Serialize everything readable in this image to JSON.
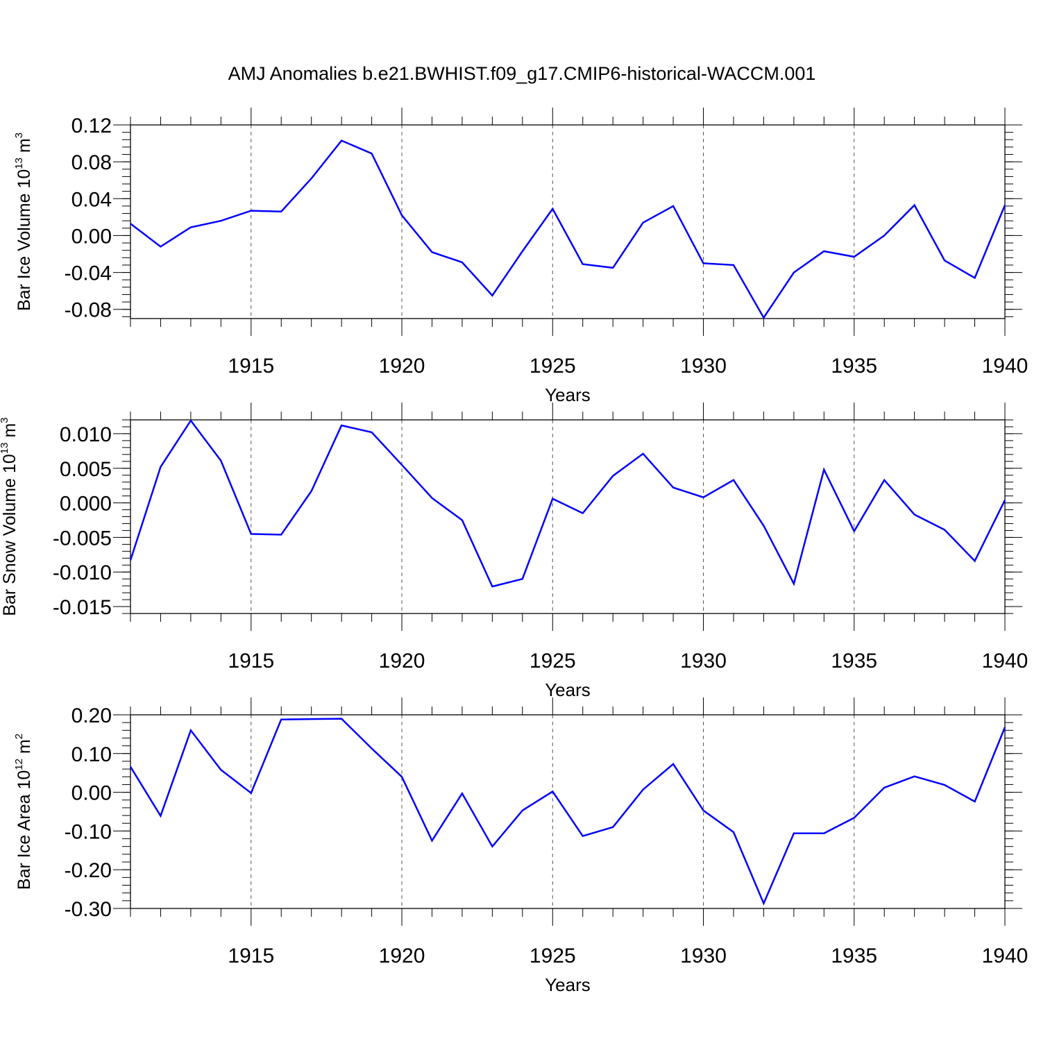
{
  "title": "AMJ Anomalies b.e21.BWHIST.f09_g17.CMIP6-historical-WACCM.001",
  "colors": {
    "series": "#0000ff",
    "axis": "#000000",
    "grid": "#555555"
  },
  "chart_data": [
    {
      "type": "line",
      "ylabel": {
        "text": "Bar Ice Volume 10",
        "exp": "13",
        "unit": " m",
        "unit_exp": "3"
      },
      "xlabel": "Years",
      "xlim": [
        1911,
        1940
      ],
      "ylim": [
        -0.09,
        0.12
      ],
      "yticks": [
        0.12,
        0.08,
        0.04,
        0.0,
        -0.04,
        -0.08
      ],
      "ytick_labels": [
        "0.12",
        "0.08",
        "0.04",
        "0.00",
        "-0.04",
        "-0.08"
      ],
      "xticks": [
        1915,
        1920,
        1925,
        1930,
        1935,
        1940
      ],
      "xtick_labels": [
        "1915",
        "1920",
        "1925",
        "1930",
        "1935",
        "1940"
      ],
      "grid": "vertical dashed at major x ticks",
      "x": [
        1911,
        1912,
        1913,
        1914,
        1915,
        1916,
        1917,
        1918,
        1919,
        1920,
        1921,
        1922,
        1923,
        1924,
        1925,
        1926,
        1927,
        1928,
        1929,
        1930,
        1931,
        1932,
        1933,
        1934,
        1935,
        1936,
        1937,
        1938,
        1939,
        1940
      ],
      "y": [
        0.013,
        -0.012,
        0.009,
        0.016,
        0.027,
        0.026,
        0.062,
        0.103,
        0.089,
        0.022,
        -0.018,
        -0.029,
        -0.065,
        -0.017,
        0.029,
        -0.031,
        -0.035,
        0.014,
        0.032,
        -0.03,
        -0.032,
        -0.089,
        -0.04,
        -0.017,
        -0.023,
        0.0,
        0.033,
        -0.027,
        -0.046,
        0.033
      ]
    },
    {
      "type": "line",
      "ylabel": {
        "text": "Bar Snow Volume 10",
        "exp": "13",
        "unit": " m",
        "unit_exp": "3"
      },
      "xlabel": "Years",
      "xlim": [
        1911,
        1940
      ],
      "ylim": [
        -0.016,
        0.012
      ],
      "yticks": [
        0.01,
        0.005,
        0.0,
        -0.005,
        -0.01,
        -0.015
      ],
      "ytick_labels": [
        "0.010",
        "0.005",
        "0.000",
        "-0.005",
        "-0.010",
        "-0.015"
      ],
      "xticks": [
        1915,
        1920,
        1925,
        1930,
        1935,
        1940
      ],
      "xtick_labels": [
        "1915",
        "1920",
        "1925",
        "1930",
        "1935",
        "1940"
      ],
      "grid": "vertical dashed at major x ticks",
      "x": [
        1911,
        1912,
        1913,
        1914,
        1915,
        1916,
        1917,
        1918,
        1919,
        1920,
        1921,
        1922,
        1923,
        1924,
        1925,
        1926,
        1927,
        1928,
        1929,
        1930,
        1931,
        1932,
        1933,
        1934,
        1935,
        1936,
        1937,
        1938,
        1939,
        1940
      ],
      "y": [
        -0.0083,
        0.0052,
        0.0119,
        0.0061,
        -0.0045,
        -0.0046,
        0.0017,
        0.0112,
        0.0102,
        0.0055,
        0.0007,
        -0.0025,
        -0.0121,
        -0.011,
        0.0006,
        -0.0015,
        0.0039,
        0.0071,
        0.0022,
        0.0008,
        0.0033,
        -0.0033,
        -0.0117,
        0.0048,
        -0.0041,
        0.0033,
        -0.0017,
        -0.0039,
        -0.0084,
        0.0004
      ]
    },
    {
      "type": "line",
      "ylabel": {
        "text": "Bar Ice Area 10",
        "exp": "12",
        "unit": " m",
        "unit_exp": "2"
      },
      "xlabel": "Years",
      "xlim": [
        1911,
        1940
      ],
      "ylim": [
        -0.3,
        0.2
      ],
      "yticks": [
        0.2,
        0.1,
        0.0,
        -0.1,
        -0.2,
        -0.3
      ],
      "ytick_labels": [
        "0.20",
        "0.10",
        "0.00",
        "-0.10",
        "-0.20",
        "-0.30"
      ],
      "xticks": [
        1915,
        1920,
        1925,
        1930,
        1935,
        1940
      ],
      "xtick_labels": [
        "1915",
        "1920",
        "1925",
        "1930",
        "1935",
        "1940"
      ],
      "grid": "vertical dashed at major x ticks",
      "x": [
        1911,
        1912,
        1913,
        1914,
        1915,
        1916,
        1917,
        1918,
        1919,
        1920,
        1921,
        1922,
        1923,
        1924,
        1925,
        1926,
        1927,
        1928,
        1929,
        1930,
        1931,
        1932,
        1933,
        1934,
        1935,
        1936,
        1937,
        1938,
        1939,
        1940
      ],
      "y": [
        0.066,
        -0.061,
        0.16,
        0.058,
        -0.002,
        0.188,
        0.189,
        0.19,
        0.113,
        0.04,
        -0.125,
        -0.003,
        -0.14,
        -0.047,
        0.002,
        -0.113,
        -0.09,
        0.007,
        0.073,
        -0.047,
        -0.103,
        -0.287,
        -0.106,
        -0.106,
        -0.066,
        0.012,
        0.041,
        0.019,
        -0.024,
        0.168
      ]
    }
  ]
}
